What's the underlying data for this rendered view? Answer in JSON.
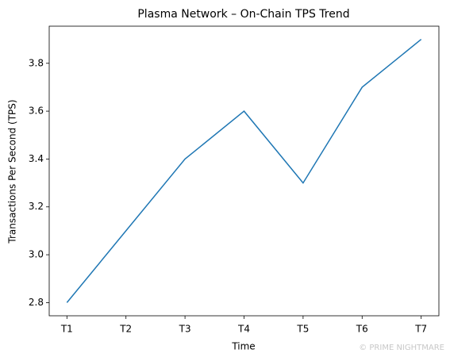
{
  "chart_data": {
    "type": "line",
    "title": "Plasma Network – On-Chain TPS Trend",
    "x_label": "Time",
    "y_label": "Transactions Per Second (TPS)",
    "categories": [
      "T1",
      "T2",
      "T3",
      "T4",
      "T5",
      "T6",
      "T7"
    ],
    "series": [
      {
        "name": "TPS",
        "color": "#1f77b4",
        "values": [
          2.8,
          3.1,
          3.4,
          3.6,
          3.3,
          3.7,
          3.9
        ]
      }
    ],
    "ylim": [
      2.745,
      3.955
    ],
    "yticks": [
      2.8,
      {
        "value": 3,
        "label": "3.0"
      },
      3.2,
      3.4,
      3.6,
      3.8
    ],
    "grid": false,
    "watermark": "© PRIME NIGHTMARE"
  }
}
